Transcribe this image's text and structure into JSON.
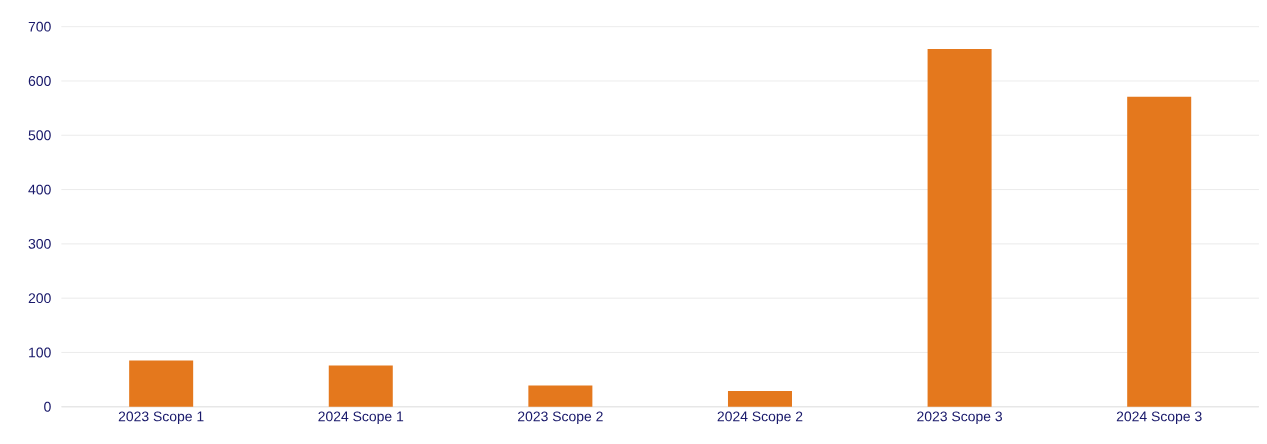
{
  "chart_data": {
    "type": "bar",
    "categories": [
      "2023 Scope 1",
      "2024 Scope 1",
      "2023 Scope 2",
      "2024 Scope 2",
      "2023 Scope 3",
      "2024 Scope 3"
    ],
    "values": [
      85,
      76,
      39,
      29,
      659,
      571
    ],
    "color": "#e4781d",
    "ylim": [
      0,
      700
    ],
    "yticks": [
      0,
      100,
      200,
      300,
      400,
      500,
      600,
      700
    ],
    "grid": "y"
  }
}
